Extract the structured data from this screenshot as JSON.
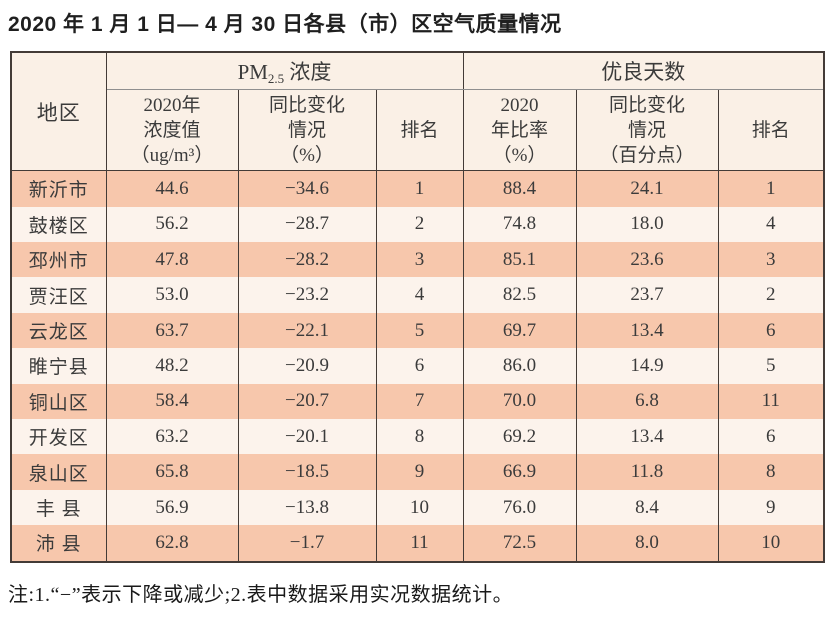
{
  "title": "2020 年 1 月 1 日— 4 月 30 日各县（市）区空气质量情况",
  "note": "注:1.“−”表示下降或减少;2.表中数据采用实况数据统计。",
  "colors": {
    "row_odd_bg": "#f7c7ac",
    "row_even_bg": "#fcf3ec",
    "header_bg": "#faf0e6",
    "border_dark": "#433b37",
    "group_separator": "#8f8f8f",
    "text": "#3b3b3b"
  },
  "table": {
    "region_header": "地区",
    "pm_group": {
      "prefix": "PM",
      "sub": "2.5",
      "suffix": " 浓度"
    },
    "good_group": "优良天数",
    "columns": [
      "2020年\n浓度值\n（ug/m³）",
      "同比变化\n情况\n（%）",
      "排名",
      "2020\n年比率\n（%）",
      "同比变化\n情况\n（百分点）",
      "排名"
    ],
    "rows": [
      {
        "region": "新沂市",
        "cells": [
          "44.6",
          "−34.6",
          "1",
          "88.4",
          "24.1",
          "1"
        ]
      },
      {
        "region": "鼓楼区",
        "cells": [
          "56.2",
          "−28.7",
          "2",
          "74.8",
          "18.0",
          "4"
        ]
      },
      {
        "region": "邳州市",
        "cells": [
          "47.8",
          "−28.2",
          "3",
          "85.1",
          "23.6",
          "3"
        ]
      },
      {
        "region": "贾汪区",
        "cells": [
          "53.0",
          "−23.2",
          "4",
          "82.5",
          "23.7",
          "2"
        ]
      },
      {
        "region": "云龙区",
        "cells": [
          "63.7",
          "−22.1",
          "5",
          "69.7",
          "13.4",
          "6"
        ]
      },
      {
        "region": "睢宁县",
        "cells": [
          "48.2",
          "−20.9",
          "6",
          "86.0",
          "14.9",
          "5"
        ]
      },
      {
        "region": "铜山区",
        "cells": [
          "58.4",
          "−20.7",
          "7",
          "70.0",
          "6.8",
          "11"
        ]
      },
      {
        "region": "开发区",
        "cells": [
          "63.2",
          "−20.1",
          "8",
          "69.2",
          "13.4",
          "6"
        ]
      },
      {
        "region": "泉山区",
        "cells": [
          "65.8",
          "−18.5",
          "9",
          "66.9",
          "11.8",
          "8"
        ]
      },
      {
        "region": "丰 县",
        "cells": [
          "56.9",
          "−13.8",
          "10",
          "76.0",
          "8.4",
          "9"
        ]
      },
      {
        "region": "沛 县",
        "cells": [
          "62.8",
          "−1.7",
          "11",
          "72.5",
          "8.0",
          "10"
        ]
      }
    ]
  }
}
